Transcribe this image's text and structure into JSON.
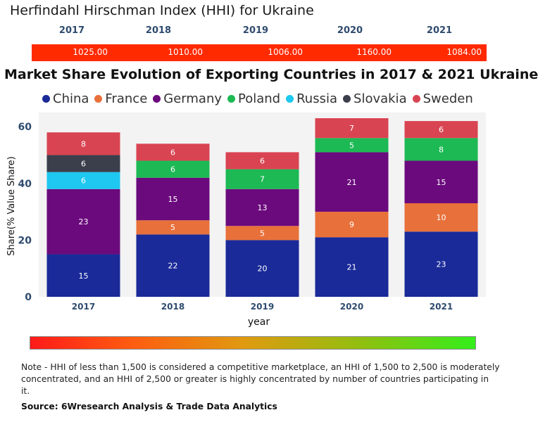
{
  "hhi": {
    "title": "Herfindahl Hirschman Index (HHI) for Ukraine",
    "years": [
      "2017",
      "2018",
      "2019",
      "2020",
      "2021"
    ],
    "values": [
      "1025.00",
      "1010.00",
      "1006.00",
      "1160.00",
      "1084.00"
    ],
    "bar_color": "#ff2a00"
  },
  "chart_data": {
    "type": "bar",
    "stacked": true,
    "title": "Market Share Evolution of Exporting Countries in 2017 & 2021 Ukraine",
    "xlabel": "year",
    "ylabel": "Share(% Value Share)",
    "ylim": [
      0,
      65
    ],
    "yticks": [
      0,
      20,
      40,
      60
    ],
    "categories": [
      "2017",
      "2018",
      "2019",
      "2020",
      "2021"
    ],
    "series": [
      {
        "name": "China",
        "color": "#1a2a99",
        "values": [
          15,
          22,
          20,
          21,
          23
        ]
      },
      {
        "name": "France",
        "color": "#e8703a",
        "values": [
          0,
          5,
          5,
          9,
          10
        ]
      },
      {
        "name": "Germany",
        "color": "#6b0a7d",
        "values": [
          23,
          15,
          13,
          21,
          15
        ]
      },
      {
        "name": "Poland",
        "color": "#1db954",
        "values": [
          0,
          6,
          7,
          5,
          8
        ]
      },
      {
        "name": "Russia",
        "color": "#1ec8f0",
        "values": [
          6,
          0,
          0,
          0,
          0
        ]
      },
      {
        "name": "Slovakia",
        "color": "#3b3f4c",
        "values": [
          6,
          0,
          0,
          0,
          0
        ]
      },
      {
        "name": "Sweden",
        "color": "#d94452",
        "values": [
          8,
          6,
          6,
          7,
          6
        ]
      }
    ]
  },
  "footer": {
    "note": "Note - HHI of less than 1,500 is considered a competitive marketplace, an HHI of 1,500 to 2,500 is moderately concentrated, and an HHI of 2,500 or greater is highly concentrated by number of countries participating in it.",
    "source": "Source: 6Wresearch Analysis & Trade Data Analytics"
  }
}
